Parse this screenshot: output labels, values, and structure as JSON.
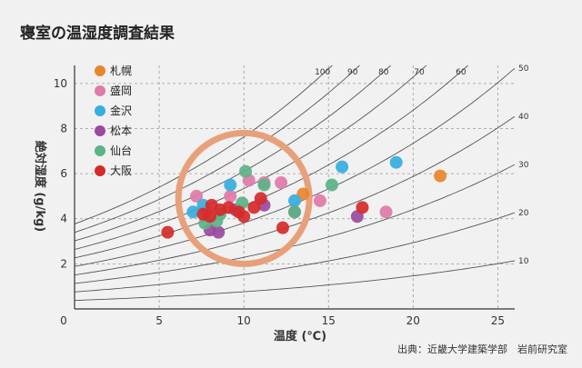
{
  "chart_data": {
    "type": "scatter",
    "title": "寝室の温湿度調査結果",
    "xlabel": "温度 (℃)",
    "ylabel": "絶対湿度 (g/kg)",
    "source": "出典：近畿大学建築学部　岩前研究室",
    "xlim": [
      0,
      26
    ],
    "ylim": [
      0,
      10.8
    ],
    "x_ticks": [
      "0",
      "5",
      "10",
      "15",
      "20",
      "25"
    ],
    "y_ticks": [
      "2",
      "4",
      "6",
      "8",
      "10"
    ],
    "grid": "dashed, x every 5, y every 2",
    "rh_curves_right": [
      "50",
      "40",
      "30",
      "20",
      "10"
    ],
    "rh_curves_top": [
      "100",
      "90",
      "80",
      "70",
      "60"
    ],
    "highlight_circle": {
      "cx": 10.0,
      "cy": 4.9
    },
    "series": [
      {
        "name": "札幌",
        "color": "#e8862a",
        "points": [
          [
            13.5,
            5.1
          ],
          [
            21.6,
            5.9
          ]
        ]
      },
      {
        "name": "盛岡",
        "color": "#e07aa8",
        "points": [
          [
            7.2,
            5.0
          ],
          [
            9.2,
            5.0
          ],
          [
            10.3,
            5.7
          ],
          [
            11.2,
            5.6
          ],
          [
            12.2,
            5.6
          ],
          [
            14.5,
            4.8
          ],
          [
            18.4,
            4.3
          ],
          [
            7.8,
            4.3
          ]
        ]
      },
      {
        "name": "金沢",
        "color": "#36aee0",
        "points": [
          [
            9.2,
            5.5
          ],
          [
            7.6,
            4.6
          ],
          [
            13.0,
            4.8
          ],
          [
            15.8,
            6.3
          ],
          [
            19.0,
            6.5
          ],
          [
            7.0,
            4.3
          ]
        ]
      },
      {
        "name": "松本",
        "color": "#9b4aa0",
        "points": [
          [
            8.0,
            3.5
          ],
          [
            8.5,
            3.4
          ],
          [
            9.5,
            4.4
          ],
          [
            11.2,
            4.6
          ],
          [
            16.7,
            4.1
          ],
          [
            13.0,
            4.3
          ]
        ]
      },
      {
        "name": "仙台",
        "color": "#5cb387",
        "points": [
          [
            10.1,
            6.1
          ],
          [
            11.2,
            5.5
          ],
          [
            15.2,
            5.5
          ],
          [
            7.7,
            3.8
          ],
          [
            8.4,
            3.9
          ],
          [
            9.9,
            4.7
          ],
          [
            13.0,
            4.3
          ],
          [
            8.6,
            4.2
          ]
        ]
      },
      {
        "name": "大阪",
        "color": "#d62a2a",
        "points": [
          [
            5.5,
            3.4
          ],
          [
            7.6,
            4.2
          ],
          [
            8.1,
            4.6
          ],
          [
            8.6,
            4.4
          ],
          [
            9.1,
            4.5
          ],
          [
            9.7,
            4.3
          ],
          [
            10.0,
            4.1
          ],
          [
            10.6,
            4.5
          ],
          [
            11.0,
            4.9
          ],
          [
            12.3,
            3.6
          ],
          [
            17.0,
            4.5
          ],
          [
            8.0,
            4.1
          ]
        ]
      }
    ]
  }
}
